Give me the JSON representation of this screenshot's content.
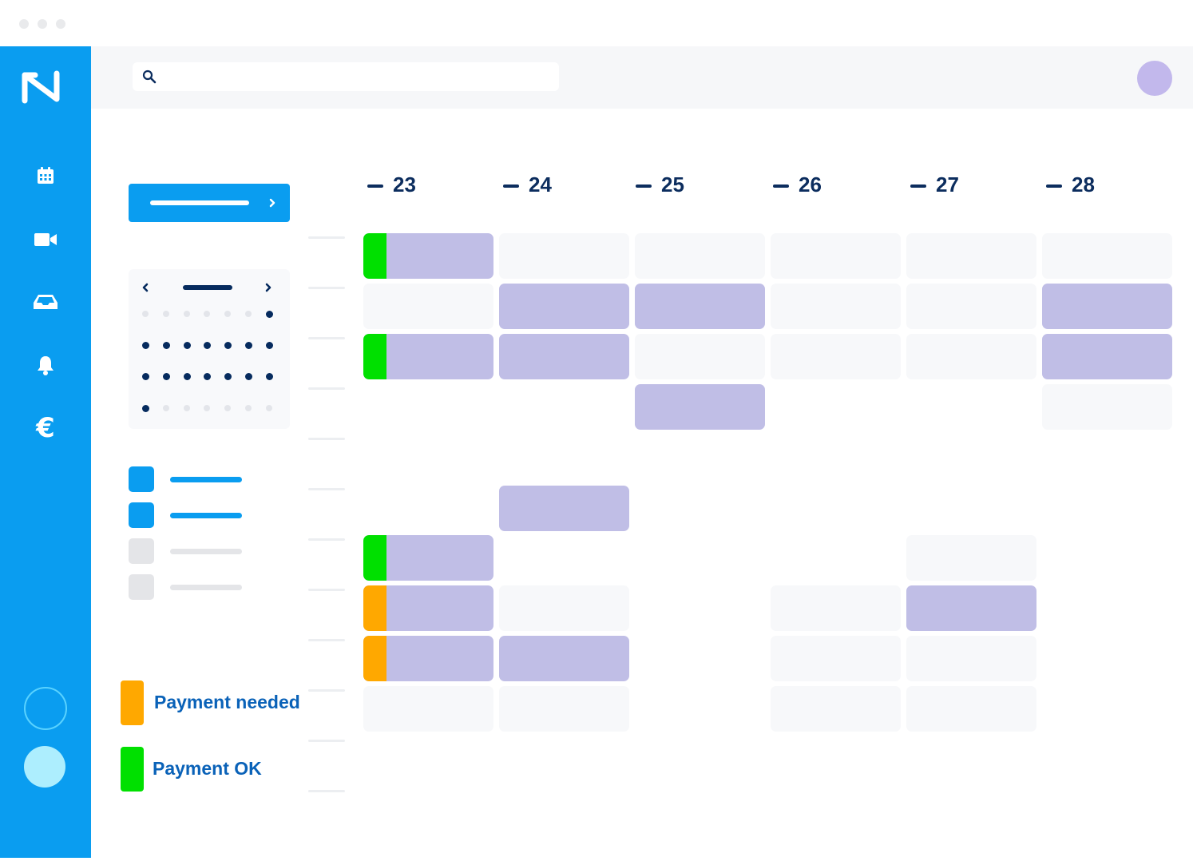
{
  "colors": {
    "sidebar": "#0a9df0",
    "event": "#c0bee6",
    "payment_needed": "#ffa800",
    "payment_ok": "#00e000",
    "legend_text": "#0a62b8",
    "day_text": "#0c2d5e"
  },
  "sidebar": {
    "logo": "N",
    "items": [
      {
        "icon": "calendar-icon"
      },
      {
        "icon": "video-camera-icon"
      },
      {
        "icon": "inbox-icon"
      },
      {
        "icon": "bell-icon"
      },
      {
        "icon": "euro-icon",
        "glyph": "€"
      }
    ]
  },
  "search": {
    "placeholder": ""
  },
  "calendar": {
    "days": [
      "23",
      "24",
      "25",
      "26",
      "27",
      "28"
    ]
  },
  "legend": [
    {
      "label": "Payment needed",
      "status": "payment_needed"
    },
    {
      "label": "Payment OK",
      "status": "payment_ok"
    }
  ]
}
